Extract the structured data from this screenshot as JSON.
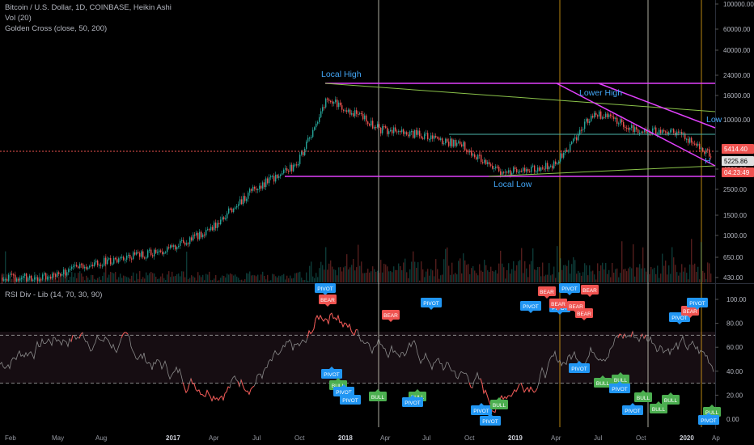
{
  "legend": {
    "main": "Bitcoin / U.S. Dollar, 1D, COINBASE, Heikin Ashi",
    "vol": "Vol (20)",
    "golden": "Golden Cross (close, 50, 200)",
    "rsi": "RSI Div - Lib (14, 70, 30, 90)"
  },
  "colors": {
    "up": "#26a69a",
    "down": "#ef5350",
    "magenta": "#e040fb",
    "green_line": "#8bc34a",
    "teal_line": "#4db6ac",
    "vline_white": "#d8d8c8",
    "vline_orange": "#e6a817",
    "pivot_blue": "#2196f3",
    "bear_red": "#ef5350",
    "bull_green": "#4caf50",
    "annotation_blue": "#42a5f5",
    "rsi_line": "#8a8a8a"
  },
  "price_axis": {
    "ticks": [
      "100000.00",
      "60000.00",
      "40000.00",
      "24000.00",
      "16000.00",
      "10000.00",
      "6000.00",
      "4000.00",
      "2500.00",
      "1500.00",
      "1000.00",
      "650.00",
      "430.00"
    ],
    "badges": [
      {
        "label": "5414.40",
        "color": "#ef5350"
      },
      {
        "label": "5225.86",
        "color": "#e0e0e0"
      },
      {
        "label": "04:23:49",
        "color": "#ef5350"
      }
    ]
  },
  "rsi_axis": {
    "ticks": [
      "100.00",
      "80.00",
      "60.00",
      "40.00",
      "20.00",
      "0.00"
    ]
  },
  "time_axis": {
    "labels": [
      "Feb",
      "May",
      "Aug",
      "2017",
      "Apr",
      "Jul",
      "Oct",
      "2018",
      "Apr",
      "Jul",
      "Oct",
      "2019",
      "Apr",
      "Jul",
      "Oct",
      "2020",
      "Ap"
    ]
  },
  "annotations": {
    "local_high": "Local High",
    "lower_high": "Lower High",
    "local_low": "Local Low",
    "low_partial": "Low",
    "h_partial": "H"
  },
  "signals": {
    "pivot": "PIVOT",
    "bear": "BEAR",
    "bull": "BULL"
  },
  "chart_data": {
    "type": "line",
    "title": "Bitcoin / U.S. Dollar, 1D, COINBASE, Heikin Ashi",
    "y_scale": "log",
    "ylim": [
      430,
      100000
    ],
    "x": [
      "2016-02",
      "2016-05",
      "2016-08",
      "2017-01",
      "2017-04",
      "2017-07",
      "2017-10",
      "2018-01",
      "2018-04",
      "2018-07",
      "2018-10",
      "2019-01",
      "2019-04",
      "2019-07",
      "2019-10",
      "2020-01",
      "2020-03"
    ],
    "series": [
      {
        "values": [
          380,
          450,
          580,
          750,
          1100,
          2500,
          4300,
          15000,
          8500,
          7800,
          6500,
          3700,
          4300,
          11500,
          8500,
          8000,
          5400
        ]
      }
    ],
    "annotations": [
      "Local High",
      "Lower High",
      "Local Low"
    ],
    "last_price": 5414.4,
    "second_price": 5225.86,
    "countdown": "04:23:49",
    "rsi": {
      "title": "RSI Div - Lib (14, 70, 30, 90)",
      "ylim": [
        0,
        100
      ],
      "overbought": 70,
      "oversold": 30
    }
  }
}
